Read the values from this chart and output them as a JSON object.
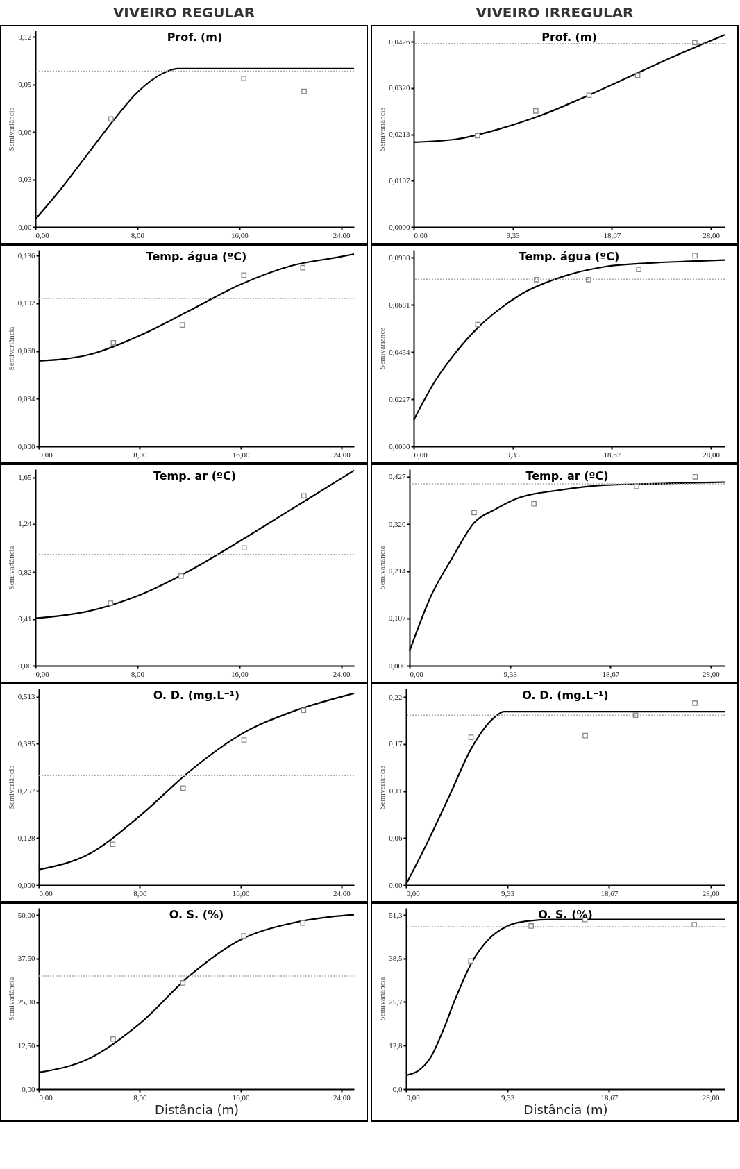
{
  "chart_data": [
    {
      "type": "scatter",
      "title": "Prof. (m)",
      "subtitle": "VIVEIRO REGULAR",
      "ylabel": "Semivariância",
      "xlim": [
        0,
        25
      ],
      "xticks": [
        {
          "value": 0,
          "label": "0,00"
        },
        {
          "value": 8,
          "label": "8,00"
        },
        {
          "value": 16,
          "label": "16,00"
        },
        {
          "value": 24,
          "label": "24,00"
        }
      ],
      "ylim": [
        0,
        0.124
      ],
      "yticks": [
        {
          "value": 0,
          "label": "0,00"
        },
        {
          "value": 0.03,
          "label": "0,03"
        },
        {
          "value": 0.06,
          "label": "0,06"
        },
        {
          "value": 0.09,
          "label": "0,09"
        },
        {
          "value": 0.12,
          "label": "0,12"
        }
      ],
      "series": [
        {
          "type": "scatter",
          "marker": "square",
          "color": "#888888",
          "x": [
            5.93,
            16.35,
            21.08
          ],
          "values": [
            0.0682,
            0.0938,
            0.0856
          ]
        },
        {
          "type": "line",
          "color": "#000000",
          "x": [
            0,
            2,
            4,
            6,
            8,
            10,
            11.2,
            25
          ],
          "values": [
            0.005,
            0.024,
            0.045,
            0.066,
            0.085,
            0.097,
            0.1,
            0.1
          ]
        }
      ],
      "ref_lines": [
        {
          "axis": "y",
          "value": 0.0984,
          "color": "#aaaaaa",
          "line_style": "dotted"
        }
      ]
    },
    {
      "type": "scatter",
      "title": "Prof. (m)",
      "subtitle": "VIVEIRO IRREGULAR",
      "ylabel": "Semivariância",
      "xlim": [
        0,
        29.3
      ],
      "xticks": [
        {
          "value": 0,
          "label": "0,00"
        },
        {
          "value": 9.33,
          "label": "9,33"
        },
        {
          "value": 18.67,
          "label": "18,67"
        },
        {
          "value": 28,
          "label": "28,00"
        }
      ],
      "ylim": [
        0,
        0.0452
      ],
      "yticks": [
        {
          "value": 0,
          "label": "0,0000"
        },
        {
          "value": 0.0107,
          "label": "0,0107"
        },
        {
          "value": 0.0213,
          "label": "0,0213"
        },
        {
          "value": 0.032,
          "label": "0,0320"
        },
        {
          "value": 0.0426,
          "label": "0,0426"
        }
      ],
      "series": [
        {
          "type": "scatter",
          "marker": "square",
          "color": "#888888",
          "x": [
            6.01,
            11.5,
            16.51,
            21.1,
            26.48
          ],
          "values": [
            0.021,
            0.0267,
            0.0303,
            0.0349,
            0.0424
          ]
        },
        {
          "type": "line",
          "color": "#000000",
          "x": [
            0,
            4,
            8,
            12,
            16,
            20,
            24,
            28,
            29.3
          ],
          "values": [
            0.0195,
            0.0202,
            0.0225,
            0.0257,
            0.0298,
            0.0342,
            0.0387,
            0.0429,
            0.0442
          ]
        }
      ],
      "ref_lines": [
        {
          "axis": "y",
          "value": 0.0422,
          "color": "#aaaaaa",
          "line_style": "dotted"
        }
      ]
    },
    {
      "type": "scatter",
      "title": "Temp. água (ºC)",
      "ylabel": "Semivariância",
      "xlim": [
        0,
        25
      ],
      "xticks": [
        {
          "value": 0,
          "label": "0,00"
        },
        {
          "value": 8,
          "label": "8,00"
        },
        {
          "value": 16,
          "label": "16,00"
        },
        {
          "value": 24,
          "label": "24,00"
        }
      ],
      "ylim": [
        0,
        0.14
      ],
      "yticks": [
        {
          "value": 0,
          "label": "0,000"
        },
        {
          "value": 0.034,
          "label": "0,034"
        },
        {
          "value": 0.068,
          "label": "0,068"
        },
        {
          "value": 0.102,
          "label": "0,102"
        },
        {
          "value": 0.136,
          "label": "0,136"
        }
      ],
      "series": [
        {
          "type": "scatter",
          "marker": "square",
          "color": "#888888",
          "x": [
            5.91,
            11.38,
            16.26,
            20.94
          ],
          "values": [
            0.0738,
            0.0865,
            0.122,
            0.1273
          ]
        },
        {
          "type": "line",
          "color": "#000000",
          "x": [
            0,
            4,
            8,
            12,
            16,
            20,
            24,
            25
          ],
          "values": [
            0.0609,
            0.0654,
            0.079,
            0.097,
            0.1154,
            0.1286,
            0.1352,
            0.137
          ]
        }
      ],
      "ref_lines": [
        {
          "axis": "y",
          "value": 0.1054,
          "color": "#aaaaaa",
          "line_style": "dotted"
        }
      ]
    },
    {
      "type": "scatter",
      "title": "Temp. água (ºC)",
      "ylabel": "Semivariance",
      "xlim": [
        0,
        29.3
      ],
      "xticks": [
        {
          "value": 0,
          "label": "0,00"
        },
        {
          "value": 9.33,
          "label": "9,33"
        },
        {
          "value": 18.67,
          "label": "18,67"
        },
        {
          "value": 28,
          "label": "28,00"
        }
      ],
      "ylim": [
        0,
        0.0945
      ],
      "yticks": [
        {
          "value": 0,
          "label": "0,0000"
        },
        {
          "value": 0.0227,
          "label": "0,0227"
        },
        {
          "value": 0.0454,
          "label": "0,0454"
        },
        {
          "value": 0.0681,
          "label": "0,0681"
        },
        {
          "value": 0.0908,
          "label": "0,0908"
        }
      ],
      "series": [
        {
          "type": "scatter",
          "marker": "square",
          "color": "#888888",
          "x": [
            6.04,
            11.57,
            16.47,
            21.2,
            26.5
          ],
          "values": [
            0.0586,
            0.0802,
            0.0802,
            0.0851,
            0.0917
          ]
        },
        {
          "type": "line",
          "color": "#000000",
          "x": [
            0,
            2,
            4,
            6,
            8,
            10,
            14,
            18,
            22,
            26,
            29.3
          ],
          "values": [
            0.0127,
            0.0313,
            0.0454,
            0.0569,
            0.0657,
            0.0728,
            0.0816,
            0.0864,
            0.0881,
            0.089,
            0.0896
          ]
        }
      ],
      "ref_lines": [
        {
          "axis": "y",
          "value": 0.0804,
          "color": "#aaaaaa",
          "line_style": "dotted"
        }
      ]
    },
    {
      "type": "scatter",
      "title": "Temp. ar (ºC)",
      "ylabel": "Semivariância",
      "xlim": [
        0,
        25
      ],
      "xticks": [
        {
          "value": 0,
          "label": "0,00"
        },
        {
          "value": 8,
          "label": "8,00"
        },
        {
          "value": 16,
          "label": "16,00"
        },
        {
          "value": 24,
          "label": "24,00"
        }
      ],
      "ylim": [
        0,
        1.72
      ],
      "yticks": [
        {
          "value": 0,
          "label": "0,00"
        },
        {
          "value": 0.41,
          "label": "0,41"
        },
        {
          "value": 0.82,
          "label": "0,82"
        },
        {
          "value": 1.24,
          "label": "1,24"
        },
        {
          "value": 1.65,
          "label": "1,65"
        }
      ],
      "series": [
        {
          "type": "scatter",
          "marker": "square",
          "color": "#888888",
          "x": [
            5.9,
            11.43,
            16.38,
            21.07
          ],
          "values": [
            0.547,
            0.786,
            1.032,
            1.487
          ]
        },
        {
          "type": "line",
          "color": "#000000",
          "x": [
            0,
            4,
            8,
            12,
            16,
            20,
            24,
            25
          ],
          "values": [
            0.415,
            0.473,
            0.611,
            0.826,
            1.088,
            1.364,
            1.64,
            1.71
          ]
        }
      ],
      "ref_lines": [
        {
          "axis": "y",
          "value": 0.974,
          "color": "#aaaaaa",
          "line_style": "dotted"
        }
      ]
    },
    {
      "type": "scatter",
      "title": "Temp. ar (ºC)",
      "ylabel": "Semivariância",
      "xlim": [
        0,
        29.3
      ],
      "xticks": [
        {
          "value": 0,
          "label": "0,00"
        },
        {
          "value": 9.33,
          "label": "9,33"
        },
        {
          "value": 18.67,
          "label": "18,67"
        },
        {
          "value": 28,
          "label": "28,00"
        }
      ],
      "ylim": [
        0,
        0.444
      ],
      "yticks": [
        {
          "value": 0,
          "label": "0,000"
        },
        {
          "value": 0.107,
          "label": "0,107"
        },
        {
          "value": 0.214,
          "label": "0,214"
        },
        {
          "value": 0.32,
          "label": "0,320"
        },
        {
          "value": 0.427,
          "label": "0,427"
        }
      ],
      "series": [
        {
          "type": "scatter",
          "marker": "square",
          "color": "#888888",
          "x": [
            6,
            11.56,
            21.1,
            26.56
          ],
          "values": [
            0.346,
            0.366,
            0.405,
            0.427
          ]
        },
        {
          "type": "line",
          "color": "#000000",
          "x": [
            0,
            2,
            4,
            6,
            8,
            10,
            14,
            18,
            24,
            29.3
          ],
          "values": [
            0.033,
            0.158,
            0.245,
            0.323,
            0.354,
            0.378,
            0.397,
            0.408,
            0.412,
            0.415
          ]
        }
      ],
      "ref_lines": [
        {
          "axis": "y",
          "value": 0.411,
          "color": "#aaaaaa",
          "line_style": "dotted"
        }
      ]
    },
    {
      "type": "scatter",
      "title": "O. D. (mg.L⁻¹)",
      "ylabel": "Semivariância",
      "xlim": [
        0,
        25
      ],
      "xticks": [
        {
          "value": 0,
          "label": "0,00"
        },
        {
          "value": 8,
          "label": "8,00"
        },
        {
          "value": 16,
          "label": "16,00"
        },
        {
          "value": 24,
          "label": "24,00"
        }
      ],
      "ylim": [
        0,
        0.535
      ],
      "yticks": [
        {
          "value": 0,
          "label": "0,000"
        },
        {
          "value": 0.128,
          "label": "0,128"
        },
        {
          "value": 0.257,
          "label": "0,257"
        },
        {
          "value": 0.385,
          "label": "0,385"
        },
        {
          "value": 0.513,
          "label": "0,513"
        }
      ],
      "series": [
        {
          "type": "scatter",
          "marker": "square",
          "color": "#888888",
          "x": [
            5.86,
            11.44,
            16.27,
            21
          ],
          "values": [
            0.111,
            0.264,
            0.395,
            0.476
          ]
        },
        {
          "type": "line",
          "color": "#000000",
          "x": [
            0,
            4,
            8,
            12,
            16,
            20,
            24,
            25
          ],
          "values": [
            0.042,
            0.085,
            0.188,
            0.311,
            0.41,
            0.471,
            0.513,
            0.522
          ]
        }
      ],
      "ref_lines": [
        {
          "axis": "y",
          "value": 0.298,
          "color": "#aaaaaa",
          "line_style": "dotted"
        }
      ]
    },
    {
      "type": "scatter",
      "title": "O. D. (mg.L⁻¹)",
      "ylabel": "Semivariância",
      "xlim": [
        0,
        29.3
      ],
      "xticks": [
        {
          "value": 0,
          "label": "0,00"
        },
        {
          "value": 9.33,
          "label": "9,33"
        },
        {
          "value": 18.67,
          "label": "18,67"
        },
        {
          "value": 28,
          "label": "28,00"
        }
      ],
      "ylim": [
        0,
        0.23
      ],
      "yticks": [
        {
          "value": 0,
          "label": "0,00"
        },
        {
          "value": 0.055,
          "label": "0,06"
        },
        {
          "value": 0.11,
          "label": "0,11"
        },
        {
          "value": 0.165,
          "label": "0,17"
        },
        {
          "value": 0.22,
          "label": "0,22"
        }
      ],
      "series": [
        {
          "type": "scatter",
          "marker": "square",
          "color": "#888888",
          "x": [
            5.97,
            16.47,
            21.1,
            26.56
          ],
          "values": [
            0.173,
            0.175,
            0.199,
            0.213
          ]
        },
        {
          "type": "line",
          "color": "#000000",
          "x": [
            0,
            2,
            4,
            6,
            8,
            9,
            29.3
          ],
          "values": [
            0.001,
            0.051,
            0.105,
            0.16,
            0.195,
            0.203,
            0.203
          ]
        }
      ],
      "ref_lines": [
        {
          "axis": "y",
          "value": 0.199,
          "color": "#aaaaaa",
          "line_style": "dotted"
        }
      ]
    },
    {
      "type": "scatter",
      "title": "O. S. (%)",
      "xlabel": "Distância (m)",
      "ylabel": "Semivariância",
      "xlim": [
        0,
        25
      ],
      "xticks": [
        {
          "value": 0,
          "label": "0,00"
        },
        {
          "value": 8,
          "label": "8,00"
        },
        {
          "value": 16,
          "label": "16,00"
        },
        {
          "value": 24,
          "label": "24,00"
        }
      ],
      "ylim": [
        0,
        52
      ],
      "yticks": [
        {
          "value": 0,
          "label": "0,00"
        },
        {
          "value": 12.5,
          "label": "12,50"
        },
        {
          "value": 25,
          "label": "25,00"
        },
        {
          "value": 37.5,
          "label": "37,50"
        },
        {
          "value": 50,
          "label": "50,00"
        }
      ],
      "series": [
        {
          "type": "scatter",
          "marker": "square",
          "color": "#888888",
          "x": [
            5.89,
            11.42,
            16.26,
            20.94
          ],
          "values": [
            14.4,
            30.5,
            44,
            47.7
          ]
        },
        {
          "type": "line",
          "color": "#000000",
          "x": [
            0,
            4,
            8,
            12,
            16,
            20,
            24,
            25
          ],
          "values": [
            4.8,
            8.8,
            18.8,
            32.7,
            42.9,
            47.6,
            49.8,
            50.1
          ]
        }
      ],
      "ref_lines": [
        {
          "axis": "y",
          "value": 32.5,
          "color": "#aaaaaa",
          "line_style": "dotted"
        }
      ]
    },
    {
      "type": "scatter",
      "title": "O. S. (%)",
      "xlabel": "Distância (m)",
      "ylabel": "Semivariância",
      "xlim": [
        0,
        29.3
      ],
      "xticks": [
        {
          "value": 0,
          "label": "0,00"
        },
        {
          "value": 9.33,
          "label": "9,33"
        },
        {
          "value": 18.67,
          "label": "18,67"
        },
        {
          "value": 28,
          "label": "28,00"
        }
      ],
      "ylim": [
        0,
        53.4
      ],
      "yticks": [
        {
          "value": 0,
          "label": "0,0"
        },
        {
          "value": 12.8,
          "label": "12,8"
        },
        {
          "value": 25.7,
          "label": "25,7"
        },
        {
          "value": 38.5,
          "label": "38,5"
        },
        {
          "value": 51.3,
          "label": "51,3"
        }
      ],
      "series": [
        {
          "type": "scatter",
          "marker": "square",
          "color": "#888888",
          "x": [
            5.95,
            11.5,
            16.45,
            26.5
          ],
          "values": [
            37.8,
            48.1,
            50,
            48.5
          ]
        },
        {
          "type": "line",
          "color": "#000000",
          "x": [
            0,
            1.15,
            2.25,
            3.35,
            4.45,
            6,
            7.75,
            9.33,
            11.28,
            13.26,
            29.3
          ],
          "values": [
            4.1,
            5.5,
            9.3,
            16.9,
            26,
            37.1,
            44.7,
            48.1,
            49.6,
            50,
            50
          ]
        }
      ],
      "ref_lines": [
        {
          "axis": "y",
          "value": 47.9,
          "color": "#aaaaaa",
          "line_style": "dotted"
        }
      ]
    }
  ]
}
